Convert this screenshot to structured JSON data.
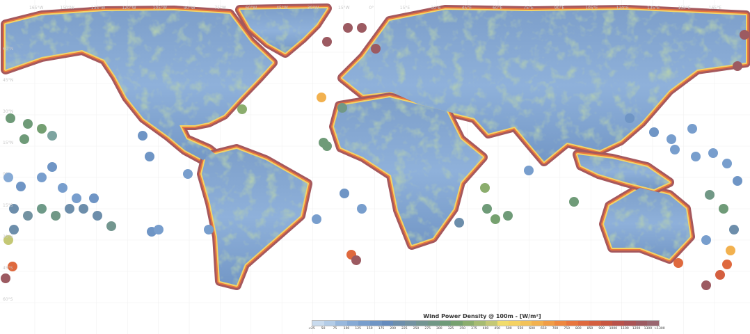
{
  "map": {
    "graticule_lon_labels": [
      "165°W",
      "150°W",
      "135°W",
      "120°W",
      "105°W",
      "90°W",
      "75°W",
      "60°W",
      "45°W",
      "30°W",
      "15°W",
      "0°",
      "15°E",
      "30°E",
      "45°E",
      "60°E",
      "75°E",
      "90°E",
      "105°E",
      "120°E",
      "135°E",
      "150°E",
      "165°E"
    ],
    "graticule_lat_labels": [
      "60°N",
      "45°N",
      "30°N",
      "15°N",
      "0°",
      "15°S",
      "30°S",
      "45°S",
      "60°S"
    ]
  },
  "legend": {
    "title": "Wind Power Density @ 100m - [W/m²]",
    "labels": [
      "<25",
      "50",
      "75",
      "100",
      "125",
      "150",
      "175",
      "200",
      "225",
      "250",
      "275",
      "300",
      "325",
      "350",
      "375",
      "400",
      "450",
      "500",
      "550",
      "600",
      "650",
      "700",
      "750",
      "800",
      "850",
      "900",
      "1000",
      "1100",
      "1200",
      "1300",
      ">1300"
    ],
    "colors": [
      "#c9dbee",
      "#b3cce7",
      "#98b8dd",
      "#86aad5",
      "#789ecd",
      "#6f95c5",
      "#658bbd",
      "#6d8eab",
      "#7392a1",
      "#739592",
      "#719886",
      "#6f9b78",
      "#76a16f",
      "#8bad6d",
      "#a6bb72",
      "#c4c875",
      "#f1dc6c",
      "#f5d262",
      "#f3c259",
      "#f2b14f",
      "#f09d47",
      "#ee8840",
      "#e8763e",
      "#df693e",
      "#d45f3f",
      "#c85640",
      "#b9524a",
      "#aa5354",
      "#9c5a61",
      "#9a6670"
    ]
  }
}
